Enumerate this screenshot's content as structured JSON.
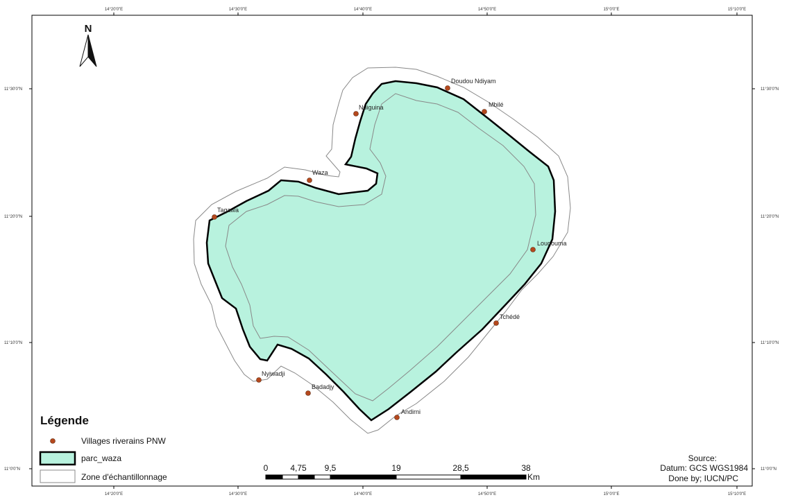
{
  "graticule": {
    "top_lon": [
      "14°20'0\"E",
      "14°30'0\"E",
      "14°40'0\"E",
      "14°50'0\"E",
      "15°0'0\"E",
      "15°10'0\"E"
    ],
    "bottom_lon": [
      "14°20'0\"E",
      "14°30'0\"E",
      "14°40'0\"E",
      "14°50'0\"E",
      "15°0'0\"E",
      "15°10'0\"E"
    ],
    "left_lat": [
      "11°30'0\"N",
      "11°20'0\"N",
      "11°10'0\"N",
      "11°0'0\"N"
    ],
    "right_lat": [
      "11°30'0\"N",
      "11°20'0\"N",
      "11°10'0\"N",
      "11°0'0\"N"
    ]
  },
  "north_arrow": {
    "letter": "N"
  },
  "villages": [
    {
      "name": "Doudou Ndiyam"
    },
    {
      "name": "Mbilé"
    },
    {
      "name": "Ndiguina"
    },
    {
      "name": "Waza"
    },
    {
      "name": "Tagawa"
    },
    {
      "name": "Lougouma"
    },
    {
      "name": "Tchédé"
    },
    {
      "name": "Nyiwadji"
    },
    {
      "name": "Badadjy"
    },
    {
      "name": "Andirni"
    }
  ],
  "legend": {
    "title": "Légende",
    "items": [
      {
        "label": "Villages riverains PNW",
        "symbol": "point",
        "color": "#b5481d"
      },
      {
        "label": "parc_waza",
        "symbol": "polygon",
        "color": "#b8f2de"
      },
      {
        "label": "Zone d'échantillonnage",
        "symbol": "outline",
        "color": "#888888"
      }
    ]
  },
  "scale_bar": {
    "labels": [
      "0",
      "4,75",
      "9,5",
      "19",
      "28,5",
      "38"
    ],
    "unit": "Km"
  },
  "source": {
    "title": "Source:",
    "datum": "Datum: GCS WGS1984",
    "credit": "Done by; IUCN/PC"
  },
  "colors": {
    "park_fill": "#b8f2de",
    "park_border": "#000000",
    "zone_line": "#888888",
    "village_dot": "#b5481d"
  }
}
